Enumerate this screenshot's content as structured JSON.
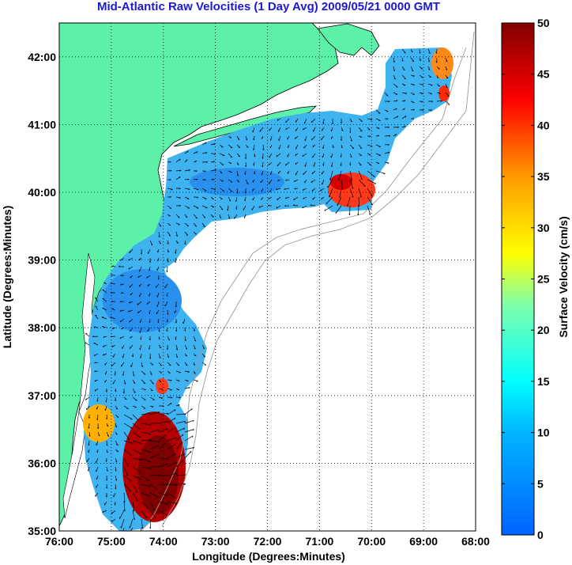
{
  "title": "Mid-Atlantic Raw Velocities (1 Day Avg) 2009/05/21 0000 GMT",
  "map": {
    "xlabel": "Longitude (Degrees:Minutes)",
    "ylabel": "Latitude (Degrees:Minutes)",
    "lon_range": [
      -76,
      -68
    ],
    "lat_range": [
      35,
      42.5
    ],
    "lon_ticks": [
      "76:00",
      "75:00",
      "74:00",
      "73:00",
      "72:00",
      "71:00",
      "70:00",
      "69:00",
      "68:00"
    ],
    "lat_ticks": [
      "35:00",
      "36:00",
      "37:00",
      "38:00",
      "39:00",
      "40:00",
      "41:00",
      "42:00"
    ],
    "grid": "dotted",
    "land_color": "#5cf0a8"
  },
  "colorbar": {
    "label": "Surface Velocity (cm/s)",
    "range": [
      0,
      50
    ],
    "ticks": [
      "0",
      "5",
      "10",
      "15",
      "20",
      "25",
      "30",
      "35",
      "40",
      "45",
      "50"
    ],
    "colormap": "jet"
  }
}
